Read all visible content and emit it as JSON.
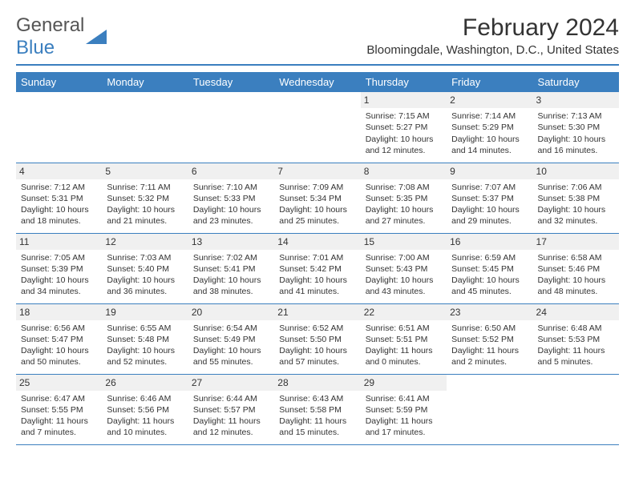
{
  "logo": {
    "general": "General",
    "blue": "Blue"
  },
  "title": "February 2024",
  "location": "Bloomingdale, Washington, D.C., United States",
  "colors": {
    "accent": "#3b7fbf",
    "bg": "#ffffff",
    "daybg": "#f0f0f0"
  },
  "daynames": [
    "Sunday",
    "Monday",
    "Tuesday",
    "Wednesday",
    "Thursday",
    "Friday",
    "Saturday"
  ],
  "weeks": [
    [
      null,
      null,
      null,
      null,
      {
        "d": "1",
        "sr": "Sunrise: 7:15 AM",
        "ss": "Sunset: 5:27 PM",
        "dl": "Daylight: 10 hours and 12 minutes."
      },
      {
        "d": "2",
        "sr": "Sunrise: 7:14 AM",
        "ss": "Sunset: 5:29 PM",
        "dl": "Daylight: 10 hours and 14 minutes."
      },
      {
        "d": "3",
        "sr": "Sunrise: 7:13 AM",
        "ss": "Sunset: 5:30 PM",
        "dl": "Daylight: 10 hours and 16 minutes."
      }
    ],
    [
      {
        "d": "4",
        "sr": "Sunrise: 7:12 AM",
        "ss": "Sunset: 5:31 PM",
        "dl": "Daylight: 10 hours and 18 minutes."
      },
      {
        "d": "5",
        "sr": "Sunrise: 7:11 AM",
        "ss": "Sunset: 5:32 PM",
        "dl": "Daylight: 10 hours and 21 minutes."
      },
      {
        "d": "6",
        "sr": "Sunrise: 7:10 AM",
        "ss": "Sunset: 5:33 PM",
        "dl": "Daylight: 10 hours and 23 minutes."
      },
      {
        "d": "7",
        "sr": "Sunrise: 7:09 AM",
        "ss": "Sunset: 5:34 PM",
        "dl": "Daylight: 10 hours and 25 minutes."
      },
      {
        "d": "8",
        "sr": "Sunrise: 7:08 AM",
        "ss": "Sunset: 5:35 PM",
        "dl": "Daylight: 10 hours and 27 minutes."
      },
      {
        "d": "9",
        "sr": "Sunrise: 7:07 AM",
        "ss": "Sunset: 5:37 PM",
        "dl": "Daylight: 10 hours and 29 minutes."
      },
      {
        "d": "10",
        "sr": "Sunrise: 7:06 AM",
        "ss": "Sunset: 5:38 PM",
        "dl": "Daylight: 10 hours and 32 minutes."
      }
    ],
    [
      {
        "d": "11",
        "sr": "Sunrise: 7:05 AM",
        "ss": "Sunset: 5:39 PM",
        "dl": "Daylight: 10 hours and 34 minutes."
      },
      {
        "d": "12",
        "sr": "Sunrise: 7:03 AM",
        "ss": "Sunset: 5:40 PM",
        "dl": "Daylight: 10 hours and 36 minutes."
      },
      {
        "d": "13",
        "sr": "Sunrise: 7:02 AM",
        "ss": "Sunset: 5:41 PM",
        "dl": "Daylight: 10 hours and 38 minutes."
      },
      {
        "d": "14",
        "sr": "Sunrise: 7:01 AM",
        "ss": "Sunset: 5:42 PM",
        "dl": "Daylight: 10 hours and 41 minutes."
      },
      {
        "d": "15",
        "sr": "Sunrise: 7:00 AM",
        "ss": "Sunset: 5:43 PM",
        "dl": "Daylight: 10 hours and 43 minutes."
      },
      {
        "d": "16",
        "sr": "Sunrise: 6:59 AM",
        "ss": "Sunset: 5:45 PM",
        "dl": "Daylight: 10 hours and 45 minutes."
      },
      {
        "d": "17",
        "sr": "Sunrise: 6:58 AM",
        "ss": "Sunset: 5:46 PM",
        "dl": "Daylight: 10 hours and 48 minutes."
      }
    ],
    [
      {
        "d": "18",
        "sr": "Sunrise: 6:56 AM",
        "ss": "Sunset: 5:47 PM",
        "dl": "Daylight: 10 hours and 50 minutes."
      },
      {
        "d": "19",
        "sr": "Sunrise: 6:55 AM",
        "ss": "Sunset: 5:48 PM",
        "dl": "Daylight: 10 hours and 52 minutes."
      },
      {
        "d": "20",
        "sr": "Sunrise: 6:54 AM",
        "ss": "Sunset: 5:49 PM",
        "dl": "Daylight: 10 hours and 55 minutes."
      },
      {
        "d": "21",
        "sr": "Sunrise: 6:52 AM",
        "ss": "Sunset: 5:50 PM",
        "dl": "Daylight: 10 hours and 57 minutes."
      },
      {
        "d": "22",
        "sr": "Sunrise: 6:51 AM",
        "ss": "Sunset: 5:51 PM",
        "dl": "Daylight: 11 hours and 0 minutes."
      },
      {
        "d": "23",
        "sr": "Sunrise: 6:50 AM",
        "ss": "Sunset: 5:52 PM",
        "dl": "Daylight: 11 hours and 2 minutes."
      },
      {
        "d": "24",
        "sr": "Sunrise: 6:48 AM",
        "ss": "Sunset: 5:53 PM",
        "dl": "Daylight: 11 hours and 5 minutes."
      }
    ],
    [
      {
        "d": "25",
        "sr": "Sunrise: 6:47 AM",
        "ss": "Sunset: 5:55 PM",
        "dl": "Daylight: 11 hours and 7 minutes."
      },
      {
        "d": "26",
        "sr": "Sunrise: 6:46 AM",
        "ss": "Sunset: 5:56 PM",
        "dl": "Daylight: 11 hours and 10 minutes."
      },
      {
        "d": "27",
        "sr": "Sunrise: 6:44 AM",
        "ss": "Sunset: 5:57 PM",
        "dl": "Daylight: 11 hours and 12 minutes."
      },
      {
        "d": "28",
        "sr": "Sunrise: 6:43 AM",
        "ss": "Sunset: 5:58 PM",
        "dl": "Daylight: 11 hours and 15 minutes."
      },
      {
        "d": "29",
        "sr": "Sunrise: 6:41 AM",
        "ss": "Sunset: 5:59 PM",
        "dl": "Daylight: 11 hours and 17 minutes."
      },
      null,
      null
    ]
  ]
}
